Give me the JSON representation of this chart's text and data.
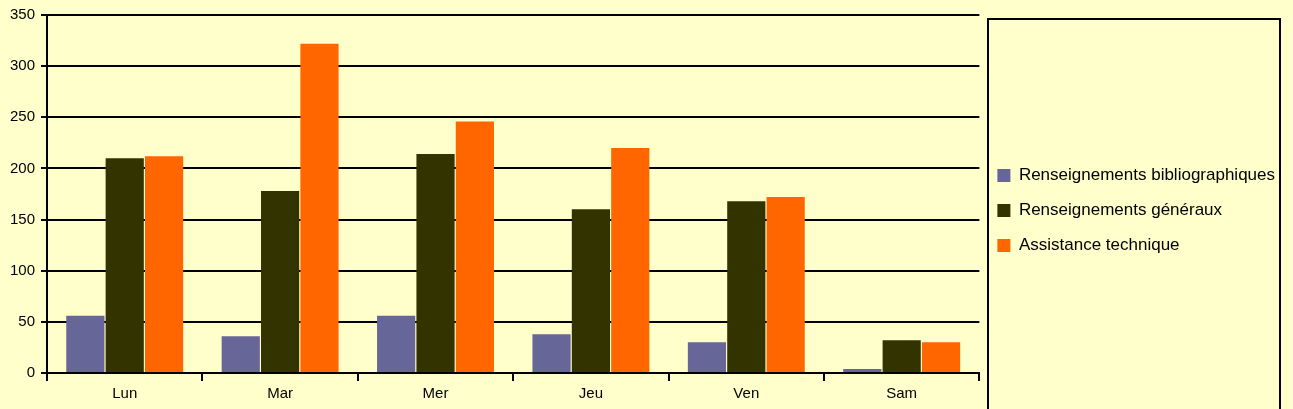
{
  "chart_data": {
    "type": "bar",
    "categories": [
      "Lun",
      "Mar",
      "Mer",
      "Jeu",
      "Ven",
      "Sam"
    ],
    "series": [
      {
        "name": "Renseignements bibliographiques",
        "color": "#666699",
        "values": [
          56,
          36,
          56,
          38,
          30,
          4
        ]
      },
      {
        "name": "Renseignements généraux",
        "color": "#333300",
        "values": [
          210,
          178,
          214,
          160,
          168,
          32
        ]
      },
      {
        "name": "Assistance technique",
        "color": "#ff6600",
        "values": [
          212,
          322,
          246,
          220,
          172,
          30
        ]
      }
    ],
    "ylim": [
      0,
      350
    ],
    "yticks": [
      0,
      50,
      100,
      150,
      200,
      250,
      300,
      350
    ],
    "grid": "y",
    "legend": "right"
  }
}
